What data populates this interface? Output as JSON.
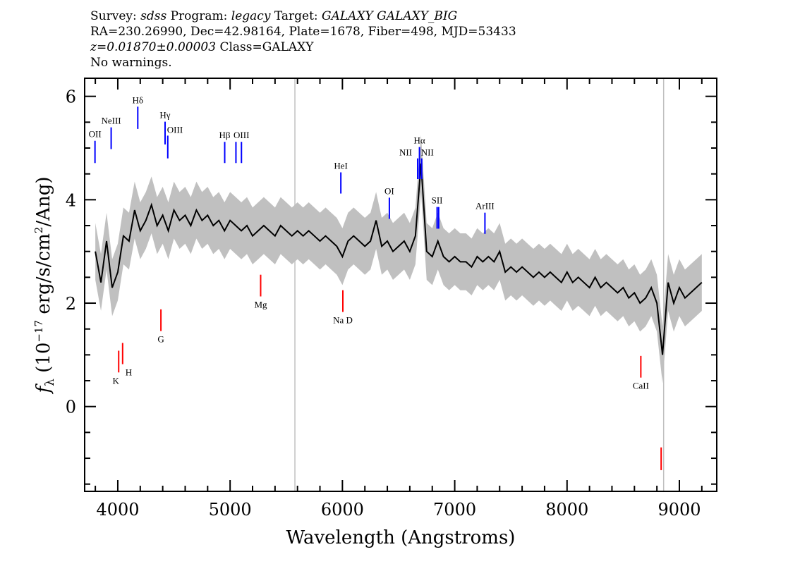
{
  "header": {
    "line1": {
      "survey_label": "Survey: ",
      "survey": "sdss",
      "program_label": " Program: ",
      "program": "legacy",
      "target_label": " Target: ",
      "target": "GALAXY GALAXY_BIG"
    },
    "line2": "RA=230.26990, Dec=42.98164, Plate=1678, Fiber=498, MJD=53433",
    "line3": {
      "redshift": "z=0.01870±0.00003",
      "class": " Class=GALAXY"
    },
    "line4": "No warnings."
  },
  "chart_data": {
    "type": "line",
    "xlabel": "Wavelength (Angstroms)",
    "ylabel": {
      "symbol": "f",
      "sub": "λ",
      "pre": " (10",
      "exp": "−17",
      "mid": " erg/s/cm",
      "exp2": "2",
      "post": "/Ang)"
    },
    "xlim": [
      3705,
      9333
    ],
    "ylim": [
      -1.64,
      6.35
    ],
    "x_ticks": [
      4000,
      5000,
      6000,
      7000,
      8000,
      9000
    ],
    "y_ticks": [
      0,
      2,
      4,
      6
    ],
    "grid": false,
    "colors": {
      "spectrum": "#000000",
      "noise": "#c0c0c0",
      "emission": "#0000ff",
      "absorption": "#ff0000",
      "sky": "#c0c0c0"
    },
    "sky_lines": [
      5577,
      8860
    ],
    "noise_halfwidth": 0.55,
    "spectrum": {
      "wavelength_start": 3800,
      "wavelength_step": 50,
      "flux": [
        3.0,
        2.4,
        3.2,
        2.3,
        2.6,
        3.3,
        3.2,
        3.8,
        3.4,
        3.6,
        3.9,
        3.5,
        3.7,
        3.4,
        3.8,
        3.6,
        3.7,
        3.5,
        3.8,
        3.6,
        3.7,
        3.5,
        3.6,
        3.4,
        3.6,
        3.5,
        3.4,
        3.5,
        3.3,
        3.4,
        3.5,
        3.4,
        3.3,
        3.5,
        3.4,
        3.3,
        3.4,
        3.3,
        3.4,
        3.3,
        3.2,
        3.3,
        3.2,
        3.1,
        2.9,
        3.2,
        3.3,
        3.2,
        3.1,
        3.2,
        3.6,
        3.1,
        3.2,
        3.0,
        3.1,
        3.2,
        3.0,
        3.3,
        4.7,
        3.0,
        2.9,
        3.2,
        2.9,
        2.8,
        2.9,
        2.8,
        2.8,
        2.7,
        2.9,
        2.8,
        2.9,
        2.8,
        3.0,
        2.6,
        2.7,
        2.6,
        2.7,
        2.6,
        2.5,
        2.6,
        2.5,
        2.6,
        2.5,
        2.4,
        2.6,
        2.4,
        2.5,
        2.4,
        2.3,
        2.5,
        2.3,
        2.4,
        2.3,
        2.2,
        2.3,
        2.1,
        2.2,
        2.0,
        2.1,
        2.3,
        2.0,
        1.0,
        2.4,
        2.0,
        2.3,
        2.1,
        2.2,
        2.3,
        2.4
      ]
    },
    "lines": [
      {
        "label": "OII",
        "wavelength": 3797,
        "kind": "emission",
        "top": 5.14,
        "bottom": 4.71,
        "label_pos": "above"
      },
      {
        "label": "NeIII",
        "wavelength": 3941,
        "kind": "emission",
        "top": 5.4,
        "bottom": 4.98,
        "label_pos": "above"
      },
      {
        "label": "Hδ",
        "wavelength": 4178,
        "kind": "emission",
        "top": 5.8,
        "bottom": 5.37,
        "label_pos": "above"
      },
      {
        "label": "Hγ",
        "wavelength": 4421,
        "kind": "emission",
        "top": 5.51,
        "bottom": 5.07,
        "label_pos": "above"
      },
      {
        "label": "OIII",
        "wavelength": 4445,
        "kind": "emission",
        "top": 5.24,
        "bottom": 4.8,
        "label_pos": "right"
      },
      {
        "label": "Hβ",
        "wavelength": 4952,
        "kind": "emission",
        "top": 5.12,
        "bottom": 4.71,
        "label_pos": "above"
      },
      {
        "label": "",
        "wavelength": 5052,
        "kind": "emission",
        "top": 5.12,
        "bottom": 4.71,
        "label_pos": "none"
      },
      {
        "label": "OIII",
        "wavelength": 5101,
        "kind": "emission",
        "top": 5.12,
        "bottom": 4.71,
        "label_pos": "above"
      },
      {
        "label": "HeI",
        "wavelength": 5986,
        "kind": "emission",
        "top": 4.53,
        "bottom": 4.12,
        "label_pos": "above"
      },
      {
        "label": "OI",
        "wavelength": 6418,
        "kind": "emission",
        "top": 4.04,
        "bottom": 3.63,
        "label_pos": "above"
      },
      {
        "label": "NII",
        "wavelength": 6670,
        "kind": "emission",
        "top": 4.8,
        "bottom": 4.4,
        "label_pos": "left"
      },
      {
        "label": "Hα",
        "wavelength": 6686,
        "kind": "emission",
        "top": 5.02,
        "bottom": 4.4,
        "label_pos": "above"
      },
      {
        "label": "NII",
        "wavelength": 6706,
        "kind": "emission",
        "top": 4.8,
        "bottom": 4.4,
        "label_pos": "right"
      },
      {
        "label": "SII",
        "wavelength": 6843,
        "kind": "emission",
        "top": 3.86,
        "bottom": 3.44,
        "label_pos": "above"
      },
      {
        "label": "",
        "wavelength": 6857,
        "kind": "emission",
        "top": 3.86,
        "bottom": 3.44,
        "label_pos": "none"
      },
      {
        "label": "ArIII",
        "wavelength": 7269,
        "kind": "emission",
        "top": 3.75,
        "bottom": 3.34,
        "label_pos": "above"
      },
      {
        "label": "K",
        "wavelength": 4008,
        "kind": "absorption",
        "top": 1.08,
        "bottom": 0.66,
        "label_pos": "below-left"
      },
      {
        "label": "H",
        "wavelength": 4043,
        "kind": "absorption",
        "top": 1.23,
        "bottom": 0.82,
        "label_pos": "below-right"
      },
      {
        "label": "G",
        "wavelength": 4384,
        "kind": "absorption",
        "top": 1.88,
        "bottom": 1.46,
        "label_pos": "below"
      },
      {
        "label": "Mg",
        "wavelength": 5272,
        "kind": "absorption",
        "top": 2.55,
        "bottom": 2.13,
        "label_pos": "below"
      },
      {
        "label": "Na D",
        "wavelength": 6004,
        "kind": "absorption",
        "top": 2.25,
        "bottom": 1.83,
        "label_pos": "below"
      },
      {
        "label": "CaII",
        "wavelength": 8657,
        "kind": "absorption",
        "top": 0.98,
        "bottom": 0.56,
        "label_pos": "below"
      },
      {
        "label": "",
        "wavelength": 8838,
        "kind": "absorption",
        "top": -0.79,
        "bottom": -1.23,
        "label_pos": "none"
      }
    ]
  }
}
